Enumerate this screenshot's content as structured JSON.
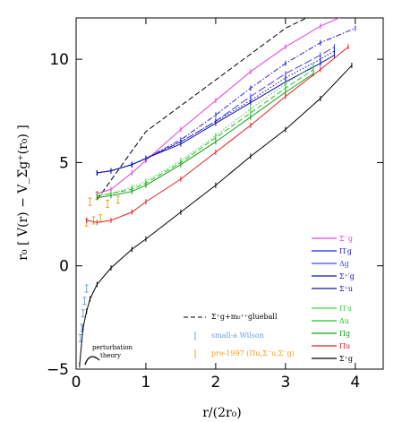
{
  "chart_data": {
    "type": "line",
    "xlabel": "r/(2r₀)",
    "ylabel": "r₀ [ V(r) − V_Σg⁺(r₀) ]",
    "xlim": [
      0,
      4.4
    ],
    "ylim": [
      -5,
      12
    ],
    "xticks": [
      0,
      1,
      2,
      3,
      4
    ],
    "yticks": [
      -5,
      0,
      5,
      10
    ],
    "grid": false,
    "legend_placement": "right",
    "series": [
      {
        "name": "Σg⁻",
        "color": "#e040e0",
        "style": "solid",
        "x": [
          0.3,
          0.5,
          0.8,
          1.0,
          1.5,
          2.0,
          2.5,
          3.0,
          3.5,
          3.9
        ],
        "y": [
          3.5,
          3.7,
          4.5,
          5.1,
          6.6,
          8.0,
          9.4,
          10.6,
          11.6,
          12.2
        ]
      },
      {
        "name": "Πg′",
        "color": "#2020e0",
        "style": "dashdot",
        "x": [
          0.3,
          0.5,
          0.8,
          1.0,
          1.5,
          2.0,
          2.5,
          3.0,
          3.5,
          4.0
        ],
        "y": [
          4.5,
          4.6,
          4.9,
          5.2,
          6.1,
          7.3,
          8.6,
          9.8,
          10.8,
          11.5
        ]
      },
      {
        "name": "Δg",
        "color": "#4040ff",
        "style": "longdash",
        "x": [
          0.3,
          0.5,
          0.8,
          1.0,
          1.5,
          2.0,
          2.5,
          3.0,
          3.5,
          3.7
        ],
        "y": [
          4.5,
          4.6,
          4.9,
          5.2,
          6.0,
          7.0,
          8.2,
          9.3,
          10.2,
          10.6
        ]
      },
      {
        "name": "Σg⁺′",
        "color": "#1010c0",
        "style": "dotted",
        "x": [
          0.3,
          0.5,
          0.8,
          1.0,
          1.5,
          2.0,
          2.5,
          3.0,
          3.5,
          3.7
        ],
        "y": [
          4.5,
          4.6,
          4.9,
          5.2,
          6.0,
          7.0,
          8.0,
          9.1,
          10.0,
          10.4
        ]
      },
      {
        "name": "Σu⁺",
        "color": "#1010a0",
        "style": "solid",
        "x": [
          0.3,
          0.5,
          0.8,
          1.0,
          1.5,
          2.0,
          2.5,
          3.0,
          3.5,
          3.7
        ],
        "y": [
          4.5,
          4.6,
          4.9,
          5.2,
          5.9,
          6.9,
          7.9,
          8.9,
          9.8,
          10.2
        ]
      },
      {
        "name": "Πu′",
        "color": "#40d040",
        "style": "dotted",
        "x": [
          0.3,
          0.5,
          0.8,
          1.0,
          1.5,
          2.0,
          2.5,
          3.0,
          3.4
        ],
        "y": [
          3.4,
          3.5,
          3.8,
          4.1,
          5.1,
          6.3,
          7.6,
          8.8,
          9.7
        ]
      },
      {
        "name": "Δu",
        "color": "#20c020",
        "style": "dashed",
        "x": [
          0.3,
          0.5,
          0.8,
          1.0,
          1.5,
          2.0,
          2.5,
          3.0,
          3.4
        ],
        "y": [
          3.4,
          3.5,
          3.7,
          4.0,
          5.0,
          6.2,
          7.4,
          8.6,
          9.5
        ]
      },
      {
        "name": "Πg",
        "color": "#10a010",
        "style": "solid",
        "x": [
          0.3,
          0.5,
          0.8,
          1.0,
          1.5,
          2.0,
          2.5,
          3.0,
          3.4
        ],
        "y": [
          3.3,
          3.4,
          3.6,
          3.9,
          4.9,
          6.0,
          7.2,
          8.4,
          9.3
        ]
      },
      {
        "name": "Πu",
        "color": "#e02020",
        "style": "solid",
        "x": [
          0.15,
          0.3,
          0.5,
          0.8,
          1.0,
          1.5,
          2.0,
          2.5,
          3.0,
          3.5,
          3.9
        ],
        "y": [
          2.2,
          2.1,
          2.2,
          2.6,
          3.1,
          4.2,
          5.5,
          6.8,
          8.2,
          9.5,
          10.6
        ]
      },
      {
        "name": "Σg⁺",
        "color": "#000000",
        "style": "solid",
        "x": [
          0.05,
          0.1,
          0.15,
          0.2,
          0.3,
          0.5,
          0.8,
          1.0,
          1.5,
          2.0,
          2.5,
          3.0,
          3.5,
          3.95
        ],
        "y": [
          -4.8,
          -3.0,
          -2.2,
          -1.6,
          -0.9,
          -0.1,
          0.8,
          1.3,
          2.6,
          3.9,
          5.3,
          6.6,
          8.1,
          9.7
        ]
      }
    ],
    "extra_lines": [
      {
        "name": "Σg⁺+m₀⁺⁺glueball",
        "color": "#000000",
        "style": "dashed",
        "x": [
          0.3,
          1.0,
          2.0,
          3.0,
          3.9
        ],
        "y": [
          3.2,
          6.5,
          9.0,
          11.5,
          13.0
        ]
      },
      {
        "name": "small-a Wilson",
        "color": "#6aa0e0",
        "style": "errorbars",
        "x": [
          0.06,
          0.08,
          0.1,
          0.12,
          0.15
        ],
        "y": [
          -3.5,
          -3.0,
          -2.3,
          -1.7,
          -1.1
        ]
      },
      {
        "name": "pre-1997 (Πu, Σu⁻, Σg⁻)",
        "color": "#f0a020",
        "style": "errorbars",
        "x": [
          0.15,
          0.25,
          0.35,
          0.2,
          0.3,
          0.45,
          0.6
        ],
        "y": [
          2.1,
          2.2,
          2.3,
          3.1,
          3.4,
          3.0,
          3.2
        ]
      }
    ],
    "legend_entries": [
      {
        "label": "Σ⁻g",
        "color": "#e040e0"
      },
      {
        "label": "Π′g",
        "color": "#2020e0"
      },
      {
        "label": "Δg",
        "color": "#4040ff"
      },
      {
        "label": "Σ⁺′g",
        "color": "#1010c0"
      },
      {
        "label": "Σ⁺u",
        "color": "#1010a0"
      },
      {
        "label": "Π′u",
        "color": "#40d040"
      },
      {
        "label": "Δu",
        "color": "#20c020"
      },
      {
        "label": "Πg",
        "color": "#10a010"
      },
      {
        "label": "Πu",
        "color": "#e02020"
      },
      {
        "label": "Σ⁺g",
        "color": "#000000"
      }
    ],
    "annotations": {
      "glueball": "Σ⁺g+m₀⁺⁺glueball",
      "wilson": "small-a Wilson",
      "pre1997": "pre-1997 (Πu,Σ⁻u,Σ⁻g)",
      "pt_line1": "perturbation",
      "pt_line2": "theory"
    }
  }
}
